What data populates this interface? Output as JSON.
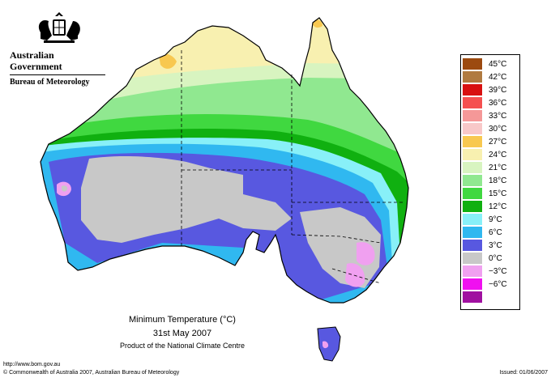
{
  "header": {
    "org_line1": "Australian Government",
    "org_line2": "Bureau of Meteorology"
  },
  "legend": {
    "items": [
      {
        "label": "45°C",
        "color": "#9c4a10"
      },
      {
        "label": "42°C",
        "color": "#b07a40"
      },
      {
        "label": "39°C",
        "color": "#d81010"
      },
      {
        "label": "36°C",
        "color": "#f55050"
      },
      {
        "label": "33°C",
        "color": "#f59898"
      },
      {
        "label": "30°C",
        "color": "#f8c8c8"
      },
      {
        "label": "27°C",
        "color": "#f8c850"
      },
      {
        "label": "24°C",
        "color": "#f8f0b0"
      },
      {
        "label": "21°C",
        "color": "#d8f4c0"
      },
      {
        "label": "18°C",
        "color": "#90e890"
      },
      {
        "label": "15°C",
        "color": "#40d840"
      },
      {
        "label": "12°C",
        "color": "#10b010"
      },
      {
        "label": "9°C",
        "color": "#88f0f8"
      },
      {
        "label": "6°C",
        "color": "#30b8f0"
      },
      {
        "label": "3°C",
        "color": "#5858e0"
      },
      {
        "label": "0°C",
        "color": "#c8c8c8"
      },
      {
        "label": "−3°C",
        "color": "#f0a0f0"
      },
      {
        "label": "−6°C",
        "color": "#f010f0"
      },
      {
        "label": "",
        "color": "#a010a0"
      }
    ]
  },
  "caption": {
    "title": "Minimum Temperature (°C)",
    "date": "31st May 2007",
    "source": "Product of the National Climate Centre"
  },
  "footer": {
    "url": "http://www.bom.gov.au",
    "copyright": "© Commonwealth of Australia 2007, Australian Bureau of Meteorology",
    "issued": "Issued: 01/06/2007"
  }
}
